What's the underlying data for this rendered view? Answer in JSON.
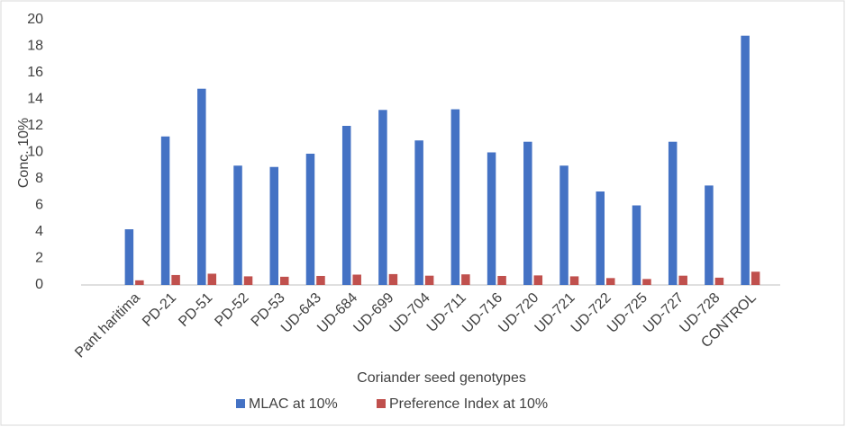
{
  "chart_data": {
    "type": "bar",
    "ylabel": "Conc. 10%",
    "xlabel": "Coriander seed genotypes",
    "categories": [
      "Pant haritima",
      "PD-21",
      "PD-51",
      "PD-52",
      "PD-53",
      "UD-643",
      "UD-684",
      "UD-699",
      "UD-704",
      "UD-711",
      "UD-716",
      "UD-720",
      "UD-721",
      "UD-722",
      "UD-725",
      "UD-727",
      "UD-728",
      "CONTROL"
    ],
    "series": [
      {
        "name": "MLAC at 10%",
        "color": "#4472c4",
        "values": [
          4.2,
          11.2,
          14.8,
          9.0,
          8.9,
          9.9,
          12.0,
          13.2,
          10.9,
          13.25,
          10.0,
          10.8,
          9.0,
          7.05,
          6.0,
          10.8,
          7.5,
          18.8
        ]
      },
      {
        "name": "Preference Index at 10%",
        "color": "#c0504d",
        "values": [
          0.35,
          0.75,
          0.85,
          0.65,
          0.62,
          0.68,
          0.78,
          0.82,
          0.7,
          0.8,
          0.68,
          0.72,
          0.65,
          0.52,
          0.45,
          0.7,
          0.55,
          1.0
        ]
      }
    ],
    "ylim": [
      0,
      20
    ],
    "yticks": [
      0,
      2,
      4,
      6,
      8,
      10,
      12,
      14,
      16,
      18,
      20
    ],
    "grid": false,
    "legend": "bottom"
  }
}
